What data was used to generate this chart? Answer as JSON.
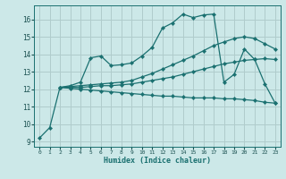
{
  "title": "",
  "xlabel": "Humidex (Indice chaleur)",
  "bg_color": "#cce8e8",
  "grid_color": "#b0cccc",
  "line_color": "#1a7070",
  "xlim": [
    -0.5,
    23.5
  ],
  "ylim": [
    8.7,
    16.8
  ],
  "yticks": [
    9,
    10,
    11,
    12,
    13,
    14,
    15,
    16
  ],
  "xticks": [
    0,
    1,
    2,
    3,
    4,
    5,
    6,
    7,
    8,
    9,
    10,
    11,
    12,
    13,
    14,
    15,
    16,
    17,
    18,
    19,
    20,
    21,
    22,
    23
  ],
  "lines": [
    {
      "x": [
        0,
        1,
        2,
        3,
        4,
        5,
        6,
        7,
        8,
        9,
        10,
        11,
        12,
        13,
        14,
        15,
        16,
        17,
        18,
        19,
        20,
        21,
        22,
        23
      ],
      "y": [
        9.2,
        9.8,
        12.1,
        12.2,
        12.4,
        13.8,
        13.9,
        13.35,
        13.4,
        13.5,
        13.9,
        14.4,
        15.5,
        15.8,
        16.3,
        16.1,
        16.25,
        16.3,
        12.4,
        12.85,
        14.3,
        13.7,
        12.3,
        11.2
      ]
    },
    {
      "x": [
        2,
        3,
        4,
        5,
        6,
        7,
        8,
        9,
        10,
        11,
        12,
        13,
        14,
        15,
        16,
        17,
        18,
        19,
        20,
        21,
        22,
        23
      ],
      "y": [
        12.1,
        12.15,
        12.2,
        12.25,
        12.3,
        12.35,
        12.4,
        12.5,
        12.7,
        12.9,
        13.15,
        13.4,
        13.65,
        13.9,
        14.2,
        14.5,
        14.7,
        14.9,
        15.0,
        14.9,
        14.6,
        14.3
      ]
    },
    {
      "x": [
        2,
        3,
        4,
        5,
        6,
        7,
        8,
        9,
        10,
        11,
        12,
        13,
        14,
        15,
        16,
        17,
        18,
        19,
        20,
        21,
        22,
        23
      ],
      "y": [
        12.1,
        12.1,
        12.1,
        12.15,
        12.2,
        12.2,
        12.25,
        12.3,
        12.4,
        12.5,
        12.6,
        12.7,
        12.85,
        13.0,
        13.15,
        13.3,
        13.45,
        13.55,
        13.65,
        13.7,
        13.75,
        13.7
      ]
    },
    {
      "x": [
        2,
        3,
        4,
        5,
        6,
        7,
        8,
        9,
        10,
        11,
        12,
        13,
        14,
        15,
        16,
        17,
        18,
        19,
        20,
        21,
        22,
        23
      ],
      "y": [
        12.1,
        12.05,
        12.0,
        11.95,
        11.9,
        11.85,
        11.8,
        11.75,
        11.7,
        11.65,
        11.6,
        11.6,
        11.55,
        11.5,
        11.5,
        11.5,
        11.45,
        11.45,
        11.4,
        11.35,
        11.25,
        11.2
      ]
    }
  ]
}
